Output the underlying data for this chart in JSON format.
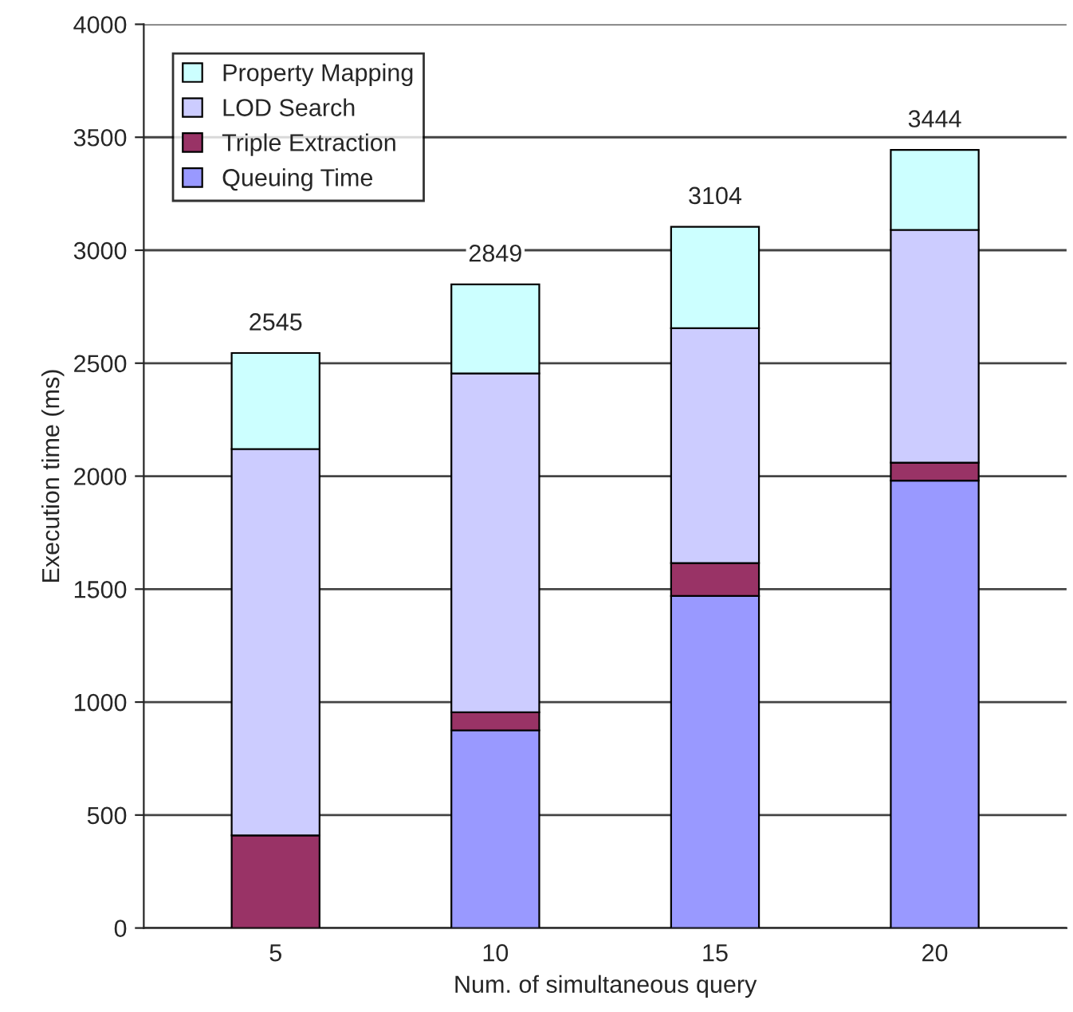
{
  "chart_data": {
    "type": "bar",
    "stacked": true,
    "xlabel": "Num. of simultaneous query",
    "ylabel": "Execution time (ms)",
    "categories": [
      "5",
      "10",
      "15",
      "20"
    ],
    "series": [
      {
        "name": "Queuing Time",
        "color": "#9999ff",
        "values": [
          null,
          875,
          1470,
          1980
        ]
      },
      {
        "name": "Triple Extraction",
        "color": "#993366",
        "values": [
          410,
          80,
          145,
          80
        ]
      },
      {
        "name": "LOD Search",
        "color": "#ccccff",
        "values": [
          1710,
          1500,
          1040,
          1030
        ]
      },
      {
        "name": "Property Mapping",
        "color": "#ccffff",
        "values": [
          425,
          394,
          449,
          354
        ]
      }
    ],
    "totals": [
      "2545",
      "2849",
      "3104",
      "3444"
    ],
    "ylim": [
      0,
      4000
    ],
    "yticks": [
      0,
      500,
      1000,
      1500,
      2000,
      2500,
      3000,
      3500,
      4000
    ],
    "grid": "y",
    "legend": "top left"
  }
}
